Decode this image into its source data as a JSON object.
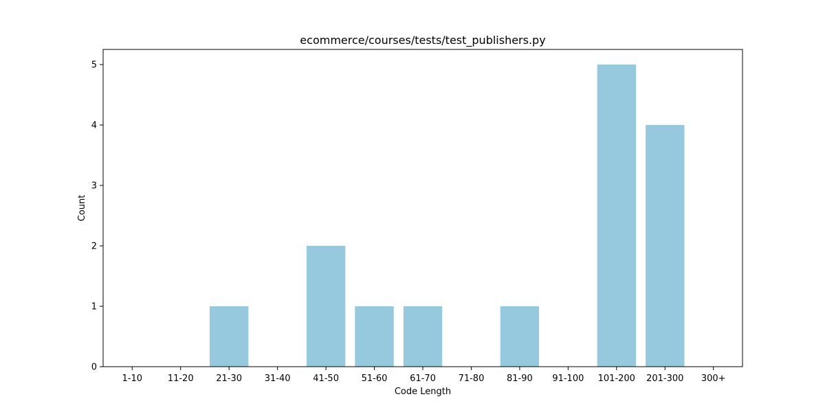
{
  "chart_data": {
    "type": "bar",
    "title": "ecommerce/courses/tests/test_publishers.py",
    "xlabel": "Code Length",
    "ylabel": "Count",
    "categories": [
      "1-10",
      "11-20",
      "21-30",
      "31-40",
      "41-50",
      "51-60",
      "61-70",
      "71-80",
      "81-90",
      "91-100",
      "101-200",
      "201-300",
      "300+"
    ],
    "values": [
      0,
      0,
      1,
      0,
      2,
      1,
      1,
      0,
      1,
      0,
      5,
      4,
      0
    ],
    "ylim": [
      0,
      5.25
    ],
    "yticks": [
      0,
      1,
      2,
      3,
      4,
      5
    ],
    "grid": false,
    "bar_color": "#96c9dd"
  }
}
